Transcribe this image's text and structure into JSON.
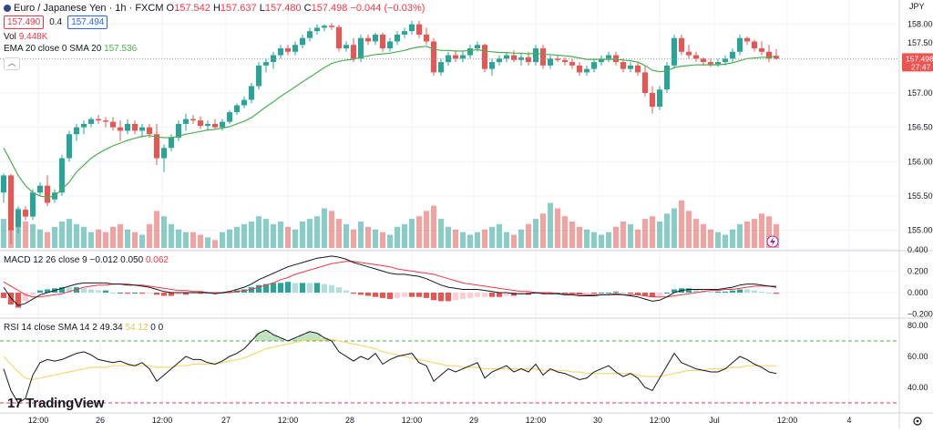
{
  "header": {
    "symbol": "Euro / Japanese Yen · 1h · FXCM",
    "ohlc": [
      {
        "k": "O",
        "v": "157.542"
      },
      {
        "k": "H",
        "v": "157.637"
      },
      {
        "k": "L",
        "v": "157.480"
      },
      {
        "k": "C",
        "v": "157.498"
      }
    ],
    "change": "−0.044 (−0.03%)",
    "bid": "157.490",
    "spread": "0.4",
    "ask": "157.494"
  },
  "indicators": {
    "vol_label": "Vol",
    "vol_value": "9.448K",
    "ema_label": "EMA 20 close 0 SMA 20",
    "ema_value": "157.536",
    "macd_label": "MACD 12 26 close 9",
    "macd_values": [
      "−0.012",
      "0.050",
      "0.062"
    ],
    "rsi_label": "RSI 14 close SMA 14 2",
    "rsi_values": [
      "49.34",
      "54.12",
      "0",
      "0"
    ]
  },
  "price_badge": {
    "price": "157.498",
    "countdown": "27:47"
  },
  "currency": "JPY",
  "branding": "TradingView",
  "colors": {
    "up": "#26a69a",
    "down": "#ef5350",
    "ema": "#4caf50",
    "macd": "#131722",
    "signal": "#f23645",
    "rsi": "#131722",
    "rsi_ma": "#f5d76e"
  },
  "chart_data": {
    "type": "candlestick",
    "time_axis": [
      "12:00",
      "26",
      "12:00",
      "27",
      "12:00",
      "28",
      "12:00",
      "29",
      "12:00",
      "30",
      "12:00",
      "Jul",
      "12:00",
      "4"
    ],
    "price_axis": [
      "158.000",
      "157.000",
      "156.500",
      "156.000",
      "155.500",
      "155.000"
    ],
    "price_axis_cut": "157.500",
    "macd_axis": [
      "0.400",
      "0.200",
      "0.000",
      "−0.200"
    ],
    "rsi_axis": [
      "80.00",
      "60.00",
      "40.00"
    ],
    "rsi_levels": [
      70,
      30
    ],
    "candles": [
      [
        155.55,
        155.83,
        155.4,
        155.8
      ],
      [
        155.8,
        155.82,
        154.8,
        155.0
      ],
      [
        155.05,
        155.35,
        154.95,
        155.3
      ],
      [
        155.3,
        155.35,
        155.15,
        155.2
      ],
      [
        155.2,
        155.6,
        155.15,
        155.55
      ],
      [
        155.55,
        155.7,
        155.5,
        155.65
      ],
      [
        155.65,
        155.8,
        155.35,
        155.4
      ],
      [
        155.45,
        155.6,
        155.4,
        155.55
      ],
      [
        155.55,
        156.1,
        155.5,
        156.05
      ],
      [
        156.05,
        156.45,
        156.0,
        156.4
      ],
      [
        156.4,
        156.55,
        156.3,
        156.5
      ],
      [
        156.5,
        156.6,
        156.4,
        156.55
      ],
      [
        156.55,
        156.65,
        156.5,
        156.62
      ],
      [
        156.62,
        156.68,
        156.55,
        156.6
      ],
      [
        156.6,
        156.65,
        156.5,
        156.58
      ],
      [
        156.58,
        156.65,
        156.45,
        156.5
      ],
      [
        156.5,
        156.6,
        156.3,
        156.45
      ],
      [
        156.45,
        156.62,
        156.4,
        156.55
      ],
      [
        156.55,
        156.6,
        156.4,
        156.45
      ],
      [
        156.45,
        156.55,
        156.35,
        156.5
      ],
      [
        156.5,
        156.55,
        156.35,
        156.4
      ],
      [
        156.4,
        156.55,
        155.95,
        156.05
      ],
      [
        156.05,
        156.25,
        155.85,
        156.2
      ],
      [
        156.2,
        156.4,
        156.15,
        156.35
      ],
      [
        156.35,
        156.6,
        156.3,
        156.55
      ],
      [
        156.55,
        156.7,
        156.45,
        156.62
      ],
      [
        156.62,
        156.68,
        156.55,
        156.6
      ],
      [
        156.6,
        156.66,
        156.48,
        156.52
      ],
      [
        156.52,
        156.6,
        156.45,
        156.55
      ],
      [
        156.55,
        156.62,
        156.48,
        156.5
      ],
      [
        156.5,
        156.62,
        156.45,
        156.58
      ],
      [
        156.58,
        156.75,
        156.55,
        156.72
      ],
      [
        156.72,
        156.85,
        156.68,
        156.82
      ],
      [
        156.82,
        156.95,
        156.78,
        156.9
      ],
      [
        156.9,
        157.15,
        156.85,
        157.1
      ],
      [
        157.1,
        157.45,
        157.05,
        157.4
      ],
      [
        157.4,
        157.5,
        157.3,
        157.45
      ],
      [
        157.45,
        157.6,
        157.35,
        157.55
      ],
      [
        157.55,
        157.7,
        157.5,
        157.65
      ],
      [
        157.65,
        157.7,
        157.55,
        157.6
      ],
      [
        157.6,
        157.75,
        157.55,
        157.7
      ],
      [
        157.7,
        157.85,
        157.65,
        157.8
      ],
      [
        157.8,
        157.95,
        157.75,
        157.9
      ],
      [
        157.9,
        158.0,
        157.85,
        157.95
      ],
      [
        157.95,
        158.0,
        157.9,
        157.98
      ],
      [
        157.98,
        158.02,
        157.92,
        157.96
      ],
      [
        157.96,
        157.99,
        157.6,
        157.65
      ],
      [
        157.65,
        157.75,
        157.6,
        157.7
      ],
      [
        157.7,
        157.8,
        157.45,
        157.5
      ],
      [
        157.5,
        157.85,
        157.45,
        157.8
      ],
      [
        157.8,
        157.85,
        157.7,
        157.75
      ],
      [
        157.75,
        157.88,
        157.7,
        157.85
      ],
      [
        157.85,
        157.88,
        157.6,
        157.65
      ],
      [
        157.65,
        157.8,
        157.6,
        157.75
      ],
      [
        157.75,
        157.9,
        157.7,
        157.85
      ],
      [
        157.85,
        157.95,
        157.8,
        157.9
      ],
      [
        157.9,
        158.05,
        157.85,
        158.0
      ],
      [
        158.0,
        158.05,
        157.8,
        157.85
      ],
      [
        157.85,
        157.95,
        157.7,
        157.75
      ],
      [
        157.75,
        157.8,
        157.25,
        157.3
      ],
      [
        157.3,
        157.5,
        157.25,
        157.45
      ],
      [
        157.45,
        157.6,
        157.4,
        157.55
      ],
      [
        157.55,
        157.62,
        157.45,
        157.5
      ],
      [
        157.5,
        157.6,
        157.45,
        157.55
      ],
      [
        157.55,
        157.7,
        157.5,
        157.65
      ],
      [
        157.65,
        157.75,
        157.6,
        157.7
      ],
      [
        157.7,
        157.72,
        157.3,
        157.35
      ],
      [
        157.35,
        157.5,
        157.25,
        157.45
      ],
      [
        157.45,
        157.55,
        157.4,
        157.5
      ],
      [
        157.5,
        157.6,
        157.45,
        157.55
      ],
      [
        157.55,
        157.62,
        157.45,
        157.48
      ],
      [
        157.48,
        157.58,
        157.4,
        157.52
      ],
      [
        157.52,
        157.6,
        157.4,
        157.45
      ],
      [
        157.45,
        157.7,
        157.4,
        157.65
      ],
      [
        157.65,
        157.7,
        157.35,
        157.4
      ],
      [
        157.4,
        157.55,
        157.35,
        157.5
      ],
      [
        157.5,
        157.55,
        157.45,
        157.48
      ],
      [
        157.48,
        157.52,
        157.4,
        157.45
      ],
      [
        157.45,
        157.5,
        157.35,
        157.4
      ],
      [
        157.4,
        157.45,
        157.25,
        157.3
      ],
      [
        157.3,
        157.4,
        157.25,
        157.35
      ],
      [
        157.35,
        157.5,
        157.3,
        157.45
      ],
      [
        157.45,
        157.55,
        157.4,
        157.5
      ],
      [
        157.5,
        157.6,
        157.45,
        157.55
      ],
      [
        157.55,
        157.6,
        157.4,
        157.45
      ],
      [
        157.45,
        157.5,
        157.3,
        157.35
      ],
      [
        157.35,
        157.45,
        157.3,
        157.4
      ],
      [
        157.4,
        157.45,
        157.25,
        157.3
      ],
      [
        157.3,
        157.4,
        156.95,
        157.0
      ],
      [
        157.0,
        157.1,
        156.7,
        156.8
      ],
      [
        156.8,
        157.1,
        156.75,
        157.05
      ],
      [
        157.05,
        157.45,
        157.0,
        157.4
      ],
      [
        157.4,
        157.85,
        157.35,
        157.8
      ],
      [
        157.8,
        157.85,
        157.55,
        157.6
      ],
      [
        157.6,
        157.7,
        157.5,
        157.55
      ],
      [
        157.55,
        157.6,
        157.45,
        157.5
      ],
      [
        157.5,
        157.52,
        157.4,
        157.45
      ],
      [
        157.45,
        157.5,
        157.38,
        157.42
      ],
      [
        157.42,
        157.5,
        157.38,
        157.45
      ],
      [
        157.45,
        157.55,
        157.4,
        157.5
      ],
      [
        157.5,
        157.65,
        157.45,
        157.6
      ],
      [
        157.6,
        157.85,
        157.55,
        157.8
      ],
      [
        157.8,
        157.82,
        157.7,
        157.75
      ],
      [
        157.75,
        157.78,
        157.6,
        157.65
      ],
      [
        157.65,
        157.75,
        157.55,
        157.6
      ],
      [
        157.6,
        157.7,
        157.45,
        157.5
      ],
      [
        157.54,
        157.64,
        157.48,
        157.5
      ]
    ],
    "ema20": [
      156.2,
      156.0,
      155.8,
      155.65,
      155.55,
      155.5,
      155.48,
      155.5,
      155.6,
      155.7,
      155.85,
      155.95,
      156.05,
      156.12,
      156.18,
      156.23,
      156.27,
      156.31,
      156.34,
      156.37,
      156.38,
      156.36,
      156.35,
      156.35,
      156.37,
      156.4,
      156.42,
      156.44,
      156.46,
      156.47,
      156.49,
      156.51,
      156.55,
      156.59,
      156.64,
      156.72,
      156.8,
      156.87,
      156.95,
      157.02,
      157.09,
      157.16,
      157.23,
      157.3,
      157.37,
      157.43,
      157.46,
      157.48,
      157.49,
      157.52,
      157.54,
      157.56,
      157.57,
      157.58,
      157.6,
      157.62,
      157.65,
      157.67,
      157.68,
      157.64,
      157.62,
      157.62,
      157.61,
      157.61,
      157.62,
      157.63,
      157.61,
      157.6,
      157.59,
      157.59,
      157.58,
      157.58,
      157.57,
      157.58,
      157.56,
      157.56,
      157.55,
      157.54,
      157.53,
      157.51,
      157.49,
      157.49,
      157.49,
      157.49,
      157.49,
      157.48,
      157.47,
      157.45,
      157.4,
      157.33,
      157.31,
      157.32,
      157.37,
      157.39,
      157.4,
      157.41,
      157.41,
      157.41,
      157.41,
      157.42,
      157.44,
      157.47,
      157.5,
      157.51,
      157.52,
      157.52,
      157.54
    ],
    "volume": [
      0.55,
      0.9,
      0.75,
      0.5,
      0.45,
      0.35,
      0.3,
      0.4,
      0.5,
      0.55,
      0.45,
      0.4,
      0.3,
      0.35,
      0.3,
      0.4,
      0.45,
      0.35,
      0.3,
      0.25,
      0.45,
      0.7,
      0.6,
      0.45,
      0.35,
      0.3,
      0.3,
      0.25,
      0.2,
      0.15,
      0.3,
      0.35,
      0.4,
      0.45,
      0.5,
      0.6,
      0.55,
      0.45,
      0.5,
      0.4,
      0.35,
      0.5,
      0.55,
      0.6,
      0.75,
      0.7,
      0.55,
      0.45,
      0.35,
      0.5,
      0.4,
      0.35,
      0.3,
      0.25,
      0.4,
      0.45,
      0.55,
      0.6,
      0.7,
      0.8,
      0.55,
      0.4,
      0.35,
      0.3,
      0.25,
      0.3,
      0.35,
      0.4,
      0.45,
      0.3,
      0.25,
      0.35,
      0.45,
      0.55,
      0.65,
      0.85,
      0.75,
      0.6,
      0.5,
      0.4,
      0.35,
      0.3,
      0.25,
      0.3,
      0.4,
      0.5,
      0.45,
      0.35,
      0.55,
      0.6,
      0.5,
      0.65,
      0.75,
      0.9,
      0.7,
      0.55,
      0.45,
      0.35,
      0.3,
      0.25,
      0.35,
      0.45,
      0.5,
      0.55,
      0.65,
      0.6,
      0.45
    ],
    "macd": [
      0.05,
      -0.05,
      -0.12,
      -0.1,
      -0.06,
      -0.02,
      0.0,
      0.02,
      0.04,
      0.06,
      0.08,
      0.09,
      0.09,
      0.09,
      0.09,
      0.08,
      0.08,
      0.07,
      0.07,
      0.06,
      0.05,
      0.03,
      0.01,
      0.0,
      0.0,
      0.0,
      0.0,
      0.0,
      0.0,
      -0.01,
      0.0,
      0.01,
      0.03,
      0.05,
      0.08,
      0.12,
      0.15,
      0.18,
      0.21,
      0.24,
      0.26,
      0.28,
      0.3,
      0.32,
      0.33,
      0.34,
      0.33,
      0.31,
      0.28,
      0.26,
      0.24,
      0.22,
      0.2,
      0.18,
      0.17,
      0.17,
      0.16,
      0.15,
      0.13,
      0.1,
      0.07,
      0.05,
      0.04,
      0.03,
      0.03,
      0.03,
      0.02,
      0.01,
      0.0,
      0.0,
      -0.01,
      -0.01,
      -0.01,
      0.0,
      -0.01,
      -0.01,
      -0.01,
      -0.02,
      -0.02,
      -0.03,
      -0.03,
      -0.03,
      -0.02,
      -0.02,
      -0.01,
      -0.02,
      -0.03,
      -0.04,
      -0.06,
      -0.08,
      -0.07,
      -0.04,
      0.0,
      0.02,
      0.03,
      0.03,
      0.03,
      0.03,
      0.03,
      0.04,
      0.05,
      0.07,
      0.08,
      0.08,
      0.07,
      0.06,
      0.05
    ],
    "signal": [
      0.1,
      0.06,
      0.02,
      -0.02,
      -0.04,
      -0.04,
      -0.03,
      -0.02,
      -0.01,
      0.01,
      0.03,
      0.05,
      0.06,
      0.07,
      0.07,
      0.08,
      0.08,
      0.08,
      0.07,
      0.07,
      0.06,
      0.05,
      0.04,
      0.03,
      0.02,
      0.02,
      0.01,
      0.01,
      0.0,
      0.0,
      0.0,
      0.0,
      0.01,
      0.02,
      0.03,
      0.05,
      0.07,
      0.09,
      0.12,
      0.14,
      0.17,
      0.19,
      0.21,
      0.23,
      0.25,
      0.27,
      0.28,
      0.29,
      0.29,
      0.28,
      0.27,
      0.26,
      0.25,
      0.24,
      0.22,
      0.21,
      0.2,
      0.19,
      0.18,
      0.17,
      0.15,
      0.13,
      0.11,
      0.09,
      0.08,
      0.07,
      0.06,
      0.05,
      0.04,
      0.03,
      0.02,
      0.01,
      0.01,
      0.0,
      0.0,
      0.0,
      -0.01,
      -0.01,
      -0.01,
      -0.01,
      -0.02,
      -0.02,
      -0.02,
      -0.02,
      -0.02,
      -0.02,
      -0.02,
      -0.02,
      -0.03,
      -0.04,
      -0.04,
      -0.04,
      -0.03,
      -0.02,
      -0.01,
      0.0,
      0.01,
      0.02,
      0.02,
      0.03,
      0.03,
      0.04,
      0.05,
      0.06,
      0.06,
      0.06,
      0.06
    ],
    "rsi": [
      52,
      38,
      30,
      33,
      48,
      56,
      58,
      57,
      58,
      60,
      62,
      63,
      61,
      58,
      57,
      56,
      57,
      55,
      54,
      56,
      52,
      44,
      48,
      52,
      56,
      60,
      58,
      58,
      56,
      55,
      57,
      60,
      62,
      65,
      70,
      75,
      77,
      74,
      72,
      70,
      72,
      74,
      76,
      75,
      72,
      70,
      63,
      60,
      57,
      60,
      58,
      62,
      55,
      58,
      60,
      61,
      62,
      56,
      54,
      44,
      48,
      52,
      50,
      52,
      54,
      56,
      46,
      50,
      52,
      54,
      50,
      52,
      50,
      55,
      48,
      52,
      50,
      49,
      47,
      45,
      46,
      50,
      52,
      54,
      50,
      47,
      49,
      46,
      40,
      38,
      46,
      54,
      62,
      56,
      54,
      52,
      51,
      50,
      50,
      52,
      56,
      60,
      58,
      55,
      53,
      50,
      49
    ],
    "rsi_ma": [
      60,
      55,
      50,
      46,
      45,
      46,
      47,
      48,
      49,
      50,
      51,
      52,
      53,
      53,
      53,
      54,
      54,
      54,
      54,
      54,
      54,
      53,
      53,
      53,
      54,
      54,
      55,
      55,
      55,
      55,
      56,
      57,
      58,
      59,
      61,
      63,
      65,
      66,
      67,
      68,
      69,
      70,
      71,
      71,
      71,
      71,
      70,
      69,
      68,
      67,
      66,
      65,
      63,
      62,
      61,
      60,
      59,
      58,
      57,
      56,
      55,
      54,
      54,
      53,
      53,
      53,
      52,
      52,
      52,
      52,
      52,
      52,
      52,
      52,
      51,
      51,
      51,
      51,
      50,
      50,
      49,
      49,
      49,
      49,
      49,
      49,
      49,
      48,
      47,
      47,
      47,
      48,
      49,
      50,
      51,
      51,
      51,
      52,
      52,
      52,
      53,
      53,
      54,
      54,
      54,
      54,
      54
    ]
  }
}
